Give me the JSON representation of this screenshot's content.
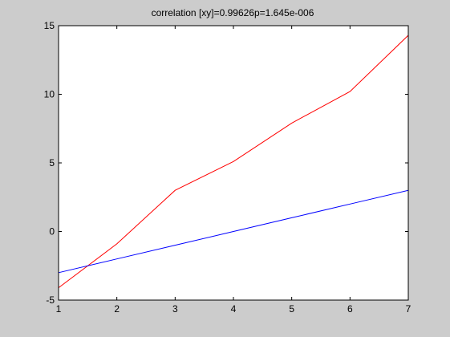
{
  "colors": {
    "figure_bg": "#cccccc",
    "axes_bg": "#ffffff",
    "axes_line": "#000000",
    "series_colors": [
      "#ff0000",
      "#0000ff"
    ]
  },
  "chart_data": {
    "type": "line",
    "title": "correlation [xy]=0.99626p=1.645e-006",
    "xlabel": "",
    "ylabel": "",
    "xlim": [
      1,
      7
    ],
    "ylim": [
      -5,
      15
    ],
    "x_ticks": [
      1,
      2,
      3,
      4,
      5,
      6,
      7
    ],
    "y_ticks": [
      -5,
      0,
      5,
      10,
      15
    ],
    "grid": false,
    "legend": "none",
    "x": [
      1,
      2,
      3,
      4,
      5,
      6,
      7
    ],
    "series": [
      {
        "color": "#ff0000",
        "values": [
          -4.1,
          -0.9,
          3.0,
          5.1,
          7.9,
          10.2,
          14.3
        ]
      },
      {
        "color": "#0000ff",
        "values": [
          -3.0,
          -2.0,
          -1.0,
          0.0,
          1.0,
          2.0,
          3.0
        ]
      }
    ]
  }
}
